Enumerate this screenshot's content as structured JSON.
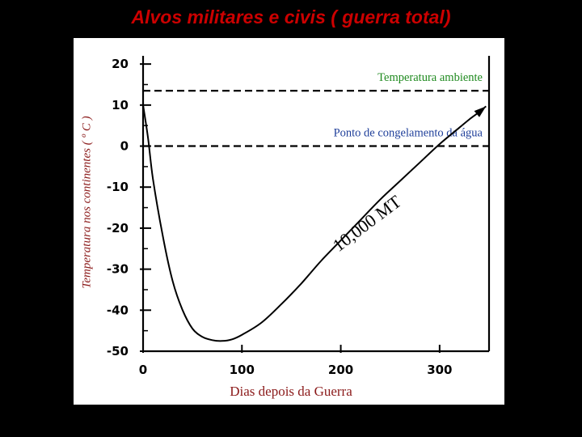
{
  "slide": {
    "title": "Alvos militares e civis ( guerra total)"
  },
  "chart_data": {
    "type": "line",
    "title": "",
    "xlabel": "Dias depois da Guerra",
    "ylabel": "Temperatura nos continentes ( º C )",
    "xlim": [
      0,
      350
    ],
    "ylim": [
      -50,
      22
    ],
    "x_ticks": [
      0,
      100,
      200,
      300
    ],
    "x_tick_labels": [
      "0",
      "100",
      "200",
      "300"
    ],
    "y_ticks": [
      20,
      10,
      0,
      -10,
      -20,
      -30,
      -40,
      -50
    ],
    "y_tick_labels": [
      "20",
      "10",
      "0",
      "-10",
      "-20",
      "-30",
      "-40",
      "-50"
    ],
    "grid": false,
    "series": [
      {
        "name": "10,000 MT",
        "x": [
          0,
          5,
          10,
          20,
          30,
          40,
          50,
          60,
          70,
          80,
          90,
          100,
          120,
          140,
          160,
          180,
          200,
          220,
          240,
          260,
          280,
          300,
          320,
          330,
          340,
          347
        ],
        "y": [
          10,
          2,
          -8,
          -22,
          -33,
          -40,
          -44.5,
          -46.5,
          -47.3,
          -47.5,
          -47.1,
          -46,
          -43,
          -38.5,
          -33.5,
          -28,
          -23,
          -18,
          -13,
          -8.5,
          -4,
          0.5,
          4.5,
          6.5,
          8.3,
          9.7
        ],
        "color": "#000000",
        "arrow_end": true
      }
    ],
    "reference_lines": [
      {
        "label": "Temperatura ambiente",
        "y": 13.5,
        "style": "dashed",
        "label_color": "#1f8a1f"
      },
      {
        "label": "Ponto de congelamento da água",
        "y": 0,
        "style": "dashed",
        "label_color": "#1f3f9a"
      }
    ],
    "annotations": [
      {
        "text": "10,000 MT",
        "x": 230,
        "y": -20
      }
    ]
  }
}
